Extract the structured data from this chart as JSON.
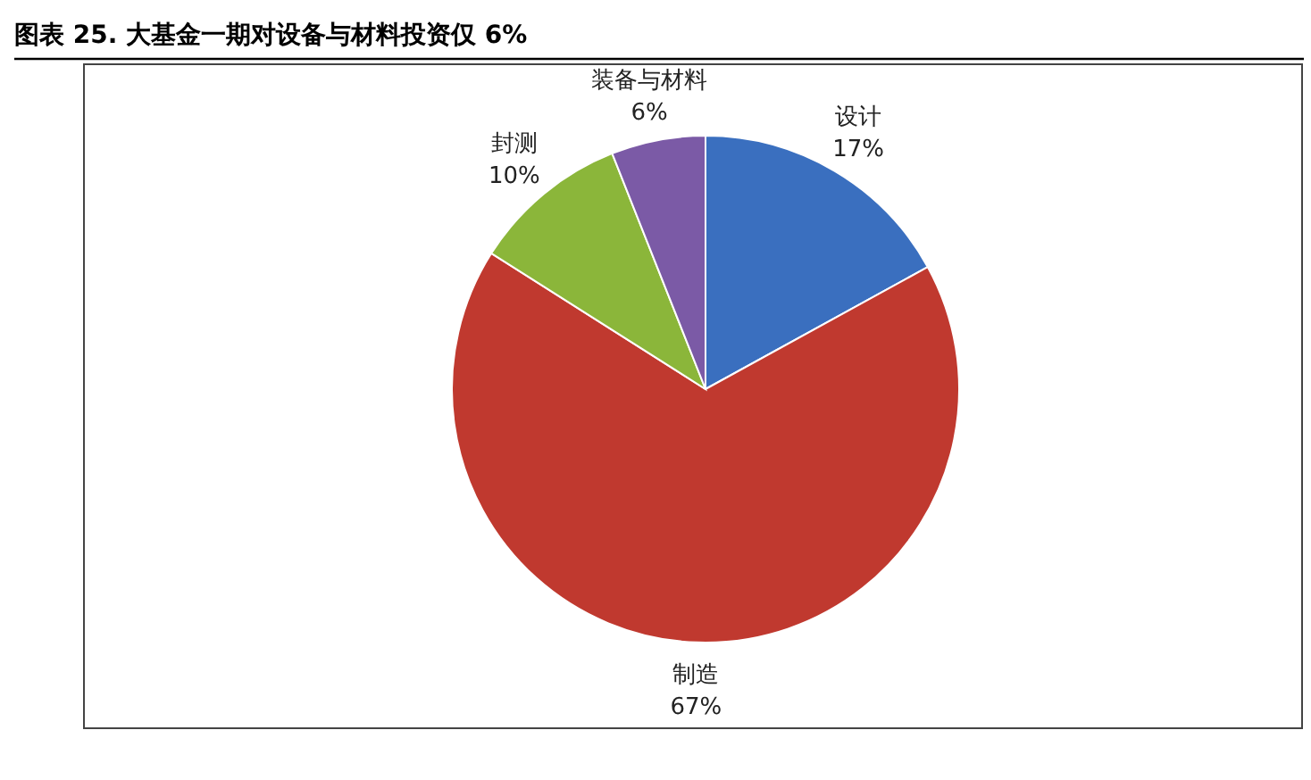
{
  "chart_data": {
    "type": "pie",
    "title": "图表 25. 大基金一期对设备与材料投资仅 6%",
    "categories": [
      "设计",
      "制造",
      "封测",
      "装备与材料"
    ],
    "values": [
      17,
      67,
      10,
      6
    ],
    "value_labels": [
      "17%",
      "67%",
      "10%",
      "6%"
    ],
    "colors": [
      "#3a6fbf",
      "#c0392f",
      "#8bb63a",
      "#7b5aa6"
    ]
  }
}
